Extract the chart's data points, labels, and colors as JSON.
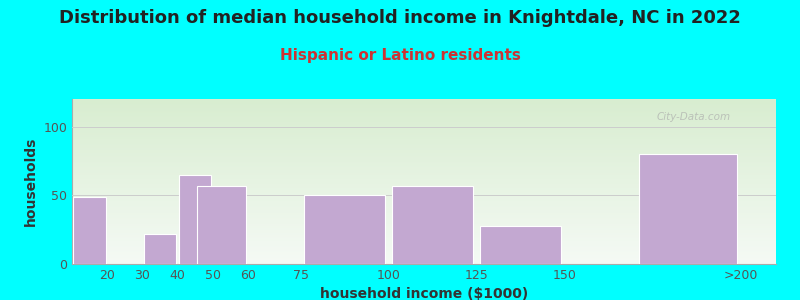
{
  "title": "Distribution of median household income in Knightdale, NC in 2022",
  "subtitle": "Hispanic or Latino residents",
  "xlabel": "household income ($1000)",
  "ylabel": "households",
  "background_outer": "#00FFFF",
  "bar_color": "#C3A8D1",
  "bar_edge_color": "#FFFFFF",
  "categories": [
    "20",
    "30",
    "40",
    "50",
    "60",
    "75",
    "100",
    "125",
    "150",
    ">200"
  ],
  "values": [
    49,
    0,
    22,
    65,
    57,
    0,
    50,
    57,
    28,
    80
  ],
  "widths": [
    10,
    10,
    10,
    10,
    15,
    25,
    25,
    25,
    25,
    30
  ],
  "centers": [
    15,
    25,
    35,
    45,
    52.5,
    62.5,
    87.5,
    112.5,
    137.5,
    185
  ],
  "xlim": [
    10,
    210
  ],
  "ylim": [
    0,
    120
  ],
  "yticks": [
    0,
    50,
    100
  ],
  "xtick_positions": [
    20,
    30,
    40,
    50,
    60,
    75,
    100,
    125,
    150,
    200
  ],
  "xtick_labels": [
    "20",
    "30",
    "40",
    "50",
    "60",
    "75",
    "100",
    "125",
    "150",
    ">200"
  ],
  "watermark": "City-Data.com",
  "title_fontsize": 13,
  "subtitle_fontsize": 11,
  "axis_label_fontsize": 10,
  "tick_fontsize": 9,
  "plot_bg_top_color": "#D8EDD0",
  "plot_bg_bottom_color": "#F5FAF5"
}
